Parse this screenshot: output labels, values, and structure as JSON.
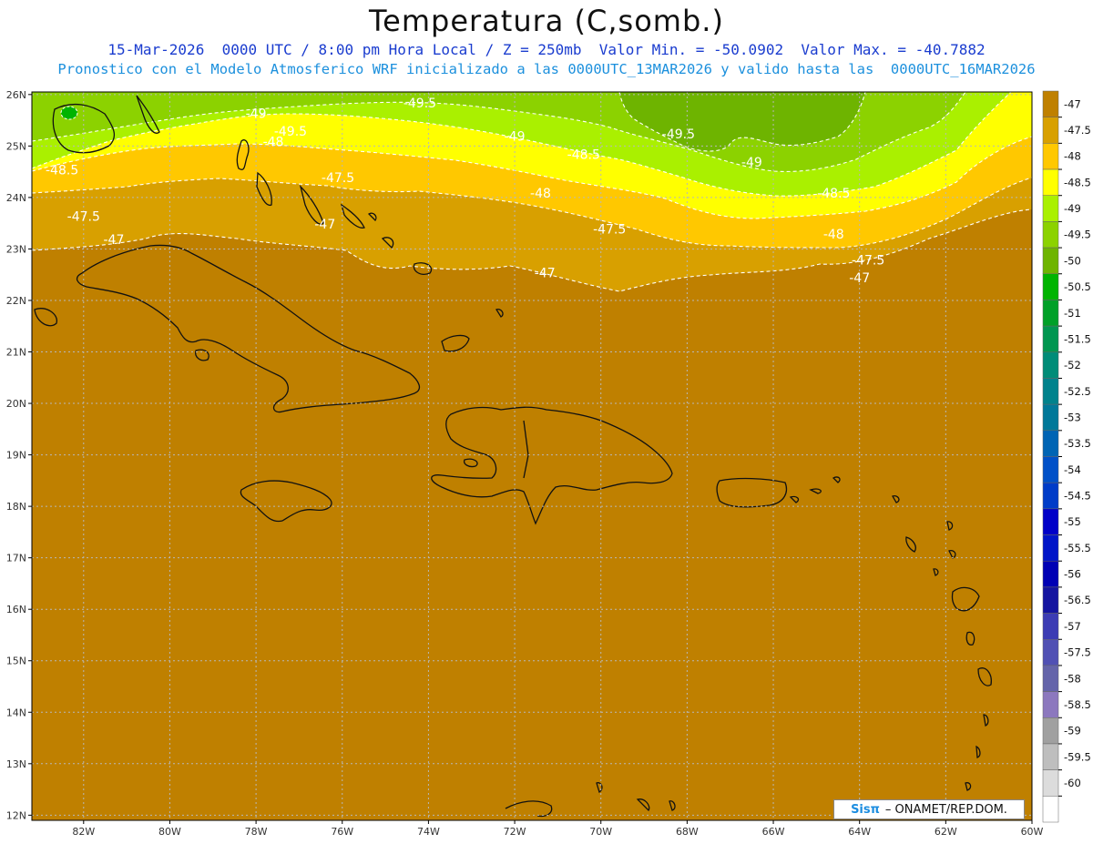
{
  "header": {
    "title": "Temperatura (C,somb.)",
    "subtitle1": "15-Mar-2026  0000 UTC / 8:00 pm Hora Local / Z = 250mb  Valor Min. = -50.0902  Valor Max. = -40.7882",
    "subtitle2": "Pronostico con el Modelo Atmosferico WRF inicializado a las 0000UTC_13MAR2026 y valido hasta las  0000UTC_16MAR2026"
  },
  "map": {
    "lon_labels": [
      "82W",
      "80W",
      "78W",
      "76W",
      "74W",
      "72W",
      "70W",
      "68W",
      "66W",
      "64W",
      "62W",
      "60W"
    ],
    "lat_labels": [
      "26N",
      "25N",
      "24N",
      "23N",
      "22N",
      "21N",
      "20N",
      "19N",
      "18N",
      "17N",
      "16N",
      "15N",
      "14N",
      "13N",
      "12N"
    ],
    "contour_labels": [
      {
        "text": "-49.5",
        "lon": -74.2,
        "lat": 25.75
      },
      {
        "text": "-49",
        "lon": -78.0,
        "lat": 25.55
      },
      {
        "text": "-49.5",
        "lon": -77.2,
        "lat": 25.2
      },
      {
        "text": "-48",
        "lon": -77.6,
        "lat": 25.0
      },
      {
        "text": "-49",
        "lon": -72.0,
        "lat": 25.1
      },
      {
        "text": "-49.5",
        "lon": -68.2,
        "lat": 25.15
      },
      {
        "text": "-48.5",
        "lon": -70.4,
        "lat": 24.75
      },
      {
        "text": "-49",
        "lon": -66.5,
        "lat": 24.6
      },
      {
        "text": "-48.5",
        "lon": -82.5,
        "lat": 24.45
      },
      {
        "text": "-47.5",
        "lon": -76.1,
        "lat": 24.3
      },
      {
        "text": "-48",
        "lon": -71.4,
        "lat": 24.0
      },
      {
        "text": "-48.5",
        "lon": -64.6,
        "lat": 24.0
      },
      {
        "text": "-47.5",
        "lon": -82.0,
        "lat": 23.55
      },
      {
        "text": "-47",
        "lon": -76.4,
        "lat": 23.4
      },
      {
        "text": "-47.5",
        "lon": -69.8,
        "lat": 23.3
      },
      {
        "text": "-48",
        "lon": -64.6,
        "lat": 23.2
      },
      {
        "text": "-47",
        "lon": -81.3,
        "lat": 23.1
      },
      {
        "text": "-47.5",
        "lon": -63.8,
        "lat": 22.7
      },
      {
        "text": "-47",
        "lon": -71.3,
        "lat": 22.45
      },
      {
        "text": "-47",
        "lon": -64.0,
        "lat": 22.35
      }
    ]
  },
  "colorbar": {
    "levels": [
      "-47",
      "-47.5",
      "-48",
      "-48.5",
      "-49",
      "-49.5",
      "-50",
      "-50.5",
      "-51",
      "-51.5",
      "-52",
      "-52.5",
      "-53",
      "-53.5",
      "-54",
      "-54.5",
      "-55",
      "-55.5",
      "-56",
      "-56.5",
      "-57",
      "-57.5",
      "-58",
      "-58.5",
      "-59",
      "-59.5",
      "-60"
    ],
    "colors": [
      "#bf8000",
      "#d8a000",
      "#ffc800",
      "#ffff00",
      "#aaf000",
      "#8cd200",
      "#6eb400",
      "#00b400",
      "#00a028",
      "#009650",
      "#008c78",
      "#00828c",
      "#007899",
      "#0064b4",
      "#0050c8",
      "#003cc8",
      "#0000c8",
      "#0014c8",
      "#0000b4",
      "#1414a0",
      "#3c3cb4",
      "#5050b4",
      "#6464aa",
      "#8c78be",
      "#a0a0a0",
      "#bebebe",
      "#dcdcdc",
      "#ffffff"
    ]
  },
  "credit": {
    "brand": "Sisπ",
    "text": "– ONAMET/REP.DOM."
  }
}
